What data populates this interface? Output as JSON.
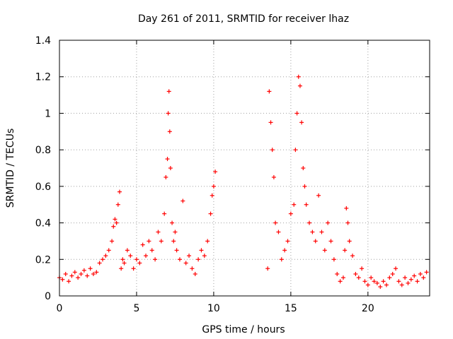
{
  "chart_data": {
    "type": "scatter",
    "title": "Day 261 of 2011, SRMTID for receiver lhaz",
    "xlabel": "GPS time / hours",
    "ylabel": "SRMTID / TECUs",
    "xlim": [
      0,
      24
    ],
    "ylim": [
      0,
      1.4
    ],
    "xticks": [
      "0",
      "5",
      "10",
      "15",
      "20"
    ],
    "yticks": [
      "0",
      "0.2",
      "0.4",
      "0.6",
      "0.8",
      "1",
      "1.2",
      "1.4"
    ],
    "grid": true,
    "marker": "+",
    "color": "#ff0000",
    "series": [
      {
        "x": [
          0.0,
          0.2,
          0.4,
          0.6,
          0.8,
          1.0,
          1.2,
          1.4,
          1.6,
          1.8,
          2.0,
          2.2,
          2.4,
          2.6,
          2.8,
          3.0,
          3.2,
          3.4,
          3.5,
          3.6,
          3.7,
          3.8,
          3.9,
          4.0,
          4.1,
          4.2,
          4.4,
          4.6,
          4.8,
          5.0,
          5.2,
          5.4,
          5.6,
          5.8,
          6.0,
          6.2,
          6.4,
          6.6,
          6.8,
          6.9,
          7.0,
          7.05,
          7.1,
          7.15,
          7.2,
          7.3,
          7.4,
          7.5,
          7.6,
          7.8,
          8.0,
          8.2,
          8.4,
          8.6,
          8.8,
          9.0,
          9.2,
          9.4,
          9.6,
          9.8,
          9.9,
          10.0,
          10.1,
          13.5,
          13.6,
          13.7,
          13.8,
          13.9,
          14.0,
          14.2,
          14.4,
          14.6,
          14.8,
          15.0,
          15.2,
          15.3,
          15.4,
          15.5,
          15.6,
          15.7,
          15.8,
          15.9,
          16.0,
          16.2,
          16.4,
          16.6,
          16.8,
          17.0,
          17.2,
          17.4,
          17.6,
          17.8,
          18.0,
          18.2,
          18.4,
          18.5,
          18.6,
          18.7,
          18.8,
          19.0,
          19.2,
          19.4,
          19.6,
          19.8,
          20.0,
          20.2,
          20.4,
          20.6,
          20.8,
          21.0,
          21.2,
          21.4,
          21.6,
          21.8,
          22.0,
          22.2,
          22.4,
          22.6,
          22.8,
          23.0,
          23.2,
          23.4,
          23.6,
          23.8
        ],
        "y": [
          0.1,
          0.09,
          0.12,
          0.08,
          0.11,
          0.13,
          0.1,
          0.12,
          0.14,
          0.11,
          0.15,
          0.12,
          0.13,
          0.18,
          0.2,
          0.22,
          0.25,
          0.3,
          0.38,
          0.42,
          0.4,
          0.5,
          0.57,
          0.15,
          0.2,
          0.18,
          0.25,
          0.22,
          0.15,
          0.2,
          0.18,
          0.28,
          0.22,
          0.3,
          0.25,
          0.2,
          0.35,
          0.3,
          0.45,
          0.65,
          0.75,
          1.0,
          1.12,
          0.9,
          0.7,
          0.4,
          0.3,
          0.35,
          0.25,
          0.2,
          0.52,
          0.18,
          0.22,
          0.15,
          0.12,
          0.2,
          0.25,
          0.22,
          0.3,
          0.45,
          0.55,
          0.6,
          0.68,
          0.15,
          1.12,
          0.95,
          0.8,
          0.65,
          0.4,
          0.35,
          0.2,
          0.25,
          0.3,
          0.45,
          0.5,
          0.8,
          1.0,
          1.2,
          1.15,
          0.95,
          0.7,
          0.6,
          0.5,
          0.4,
          0.35,
          0.3,
          0.55,
          0.35,
          0.25,
          0.4,
          0.3,
          0.2,
          0.12,
          0.08,
          0.1,
          0.25,
          0.48,
          0.4,
          0.3,
          0.22,
          0.12,
          0.1,
          0.15,
          0.08,
          0.06,
          0.1,
          0.08,
          0.07,
          0.05,
          0.08,
          0.06,
          0.1,
          0.12,
          0.15,
          0.08,
          0.06,
          0.1,
          0.07,
          0.09,
          0.11,
          0.08,
          0.12,
          0.1,
          0.13
        ]
      }
    ]
  }
}
